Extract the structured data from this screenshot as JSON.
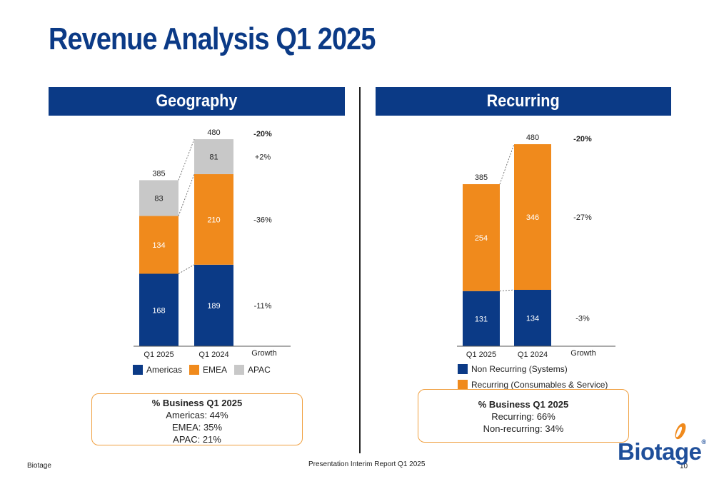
{
  "title": "Revenue Analysis Q1 2025",
  "colors": {
    "americas": "#0b3a86",
    "emea": "#f08a1c",
    "apac": "#c8c8c8",
    "header_bg": "#0b3a86",
    "box_border": "#f0a040"
  },
  "panels": {
    "left_header": "Geography",
    "right_header": "Recurring"
  },
  "chart_data": [
    {
      "type": "bar",
      "stacked": true,
      "panel": "Geography",
      "categories": [
        "Q1 2025",
        "Q1 2024"
      ],
      "growth_label": "Growth",
      "series": [
        {
          "name": "Americas",
          "values": [
            168,
            189
          ],
          "growth": "-11%"
        },
        {
          "name": "EMEA",
          "values": [
            134,
            210
          ],
          "growth": "-36%"
        },
        {
          "name": "APAC",
          "values": [
            83,
            81
          ],
          "growth": "+2%"
        }
      ],
      "totals": [
        385,
        480
      ],
      "total_growth": "-20%",
      "legend_position": "bottom"
    },
    {
      "type": "bar",
      "stacked": true,
      "panel": "Recurring",
      "categories": [
        "Q1 2025",
        "Q1 2024"
      ],
      "growth_label": "Growth",
      "series": [
        {
          "name": "Non Recurring (Systems)",
          "values": [
            131,
            134
          ],
          "growth": "-3%"
        },
        {
          "name": "Recurring (Consumables & Service)",
          "values": [
            254,
            346
          ],
          "growth": "-27%"
        }
      ],
      "totals": [
        385,
        480
      ],
      "total_growth": "-20%",
      "legend_position": "bottom"
    }
  ],
  "legend_left": [
    "Americas",
    "EMEA",
    "APAC"
  ],
  "legend_right": [
    "Non Recurring (Systems)",
    "Recurring (Consumables & Service)"
  ],
  "box_left": {
    "title": "% Business Q1 2025",
    "lines": [
      "Americas:  44%",
      "EMEA: 35%",
      "APAC:  21%"
    ]
  },
  "box_right": {
    "title": "% Business Q1 2025",
    "lines": [
      "Recurring:  66%",
      "Non-recurring: 34%"
    ]
  },
  "footer": {
    "left": "Biotage",
    "center": "Presentation Interim Report Q1 2025",
    "page": "10"
  },
  "logo_text": "Biotage",
  "logo_reg": "®"
}
